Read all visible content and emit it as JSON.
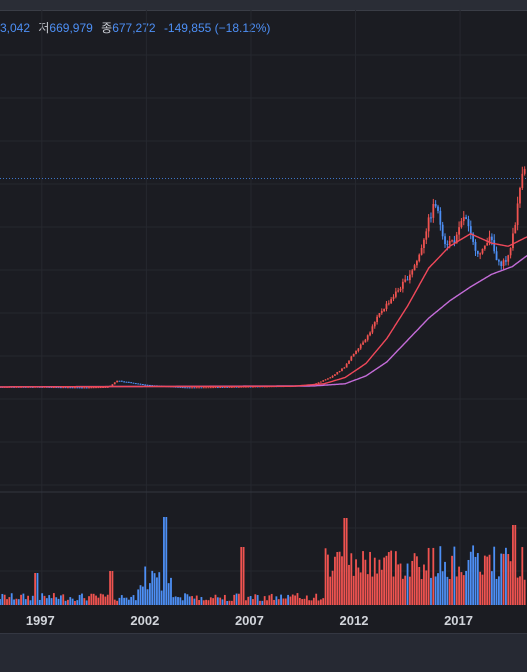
{
  "header": {
    "open_tail": "3,042",
    "low_label": "저",
    "low_value": "669,979",
    "close_label": "종",
    "close_value": "677,272",
    "change": "-149,855",
    "change_pct": "(−18.12%)"
  },
  "colors": {
    "up": "#f05350",
    "down": "#4d8ff5",
    "ma_short": "#f0485a",
    "ma_long": "#c46cd8",
    "grid": "#26282f",
    "background": "#1b1c22"
  },
  "chart_data": {
    "type": "candlestick",
    "x_tick_labels": [
      "1997",
      "2002",
      "2007",
      "2012",
      "2017"
    ],
    "x_range": [
      1995,
      2020.2
    ],
    "price": [
      [
        1995,
        10
      ],
      [
        1997,
        10
      ],
      [
        1999,
        8
      ],
      [
        2000.2,
        10
      ],
      [
        2000.6,
        30
      ],
      [
        2001,
        26
      ],
      [
        2002,
        16
      ],
      [
        2003,
        12
      ],
      [
        2004,
        8
      ],
      [
        2005,
        9
      ],
      [
        2006,
        10
      ],
      [
        2007,
        11
      ],
      [
        2008,
        12
      ],
      [
        2009,
        13
      ],
      [
        2010,
        18
      ],
      [
        2010.8,
        40
      ],
      [
        2011.5,
        75
      ],
      [
        2012,
        125
      ],
      [
        2012.6,
        175
      ],
      [
        2013.2,
        250
      ],
      [
        2013.8,
        300
      ],
      [
        2014.4,
        350
      ],
      [
        2015,
        420
      ],
      [
        2015.4,
        520
      ],
      [
        2015.8,
        600
      ],
      [
        2016.3,
        470
      ],
      [
        2016.8,
        480
      ],
      [
        2017.2,
        560
      ],
      [
        2017.6,
        470
      ],
      [
        2018,
        430
      ],
      [
        2018.4,
        500
      ],
      [
        2018.8,
        400
      ],
      [
        2019.3,
        420
      ],
      [
        2019.7,
        560
      ],
      [
        2020,
        720
      ]
    ],
    "ma_short": [
      [
        1995,
        10
      ],
      [
        2009,
        12
      ],
      [
        2010.5,
        20
      ],
      [
        2011.5,
        40
      ],
      [
        2012.5,
        85
      ],
      [
        2013.5,
        165
      ],
      [
        2014.5,
        270
      ],
      [
        2015.5,
        390
      ],
      [
        2016.5,
        460
      ],
      [
        2017.5,
        500
      ],
      [
        2018.5,
        470
      ],
      [
        2019.3,
        460
      ],
      [
        2020.2,
        490
      ]
    ],
    "ma_long": [
      [
        1995,
        10
      ],
      [
        2010,
        13
      ],
      [
        2011.5,
        20
      ],
      [
        2012.5,
        45
      ],
      [
        2013.5,
        90
      ],
      [
        2014.5,
        160
      ],
      [
        2015.5,
        230
      ],
      [
        2016.5,
        285
      ],
      [
        2017.5,
        330
      ],
      [
        2018.5,
        370
      ],
      [
        2019.5,
        395
      ],
      [
        2020.2,
        430
      ]
    ],
    "reference_line": 677
  }
}
